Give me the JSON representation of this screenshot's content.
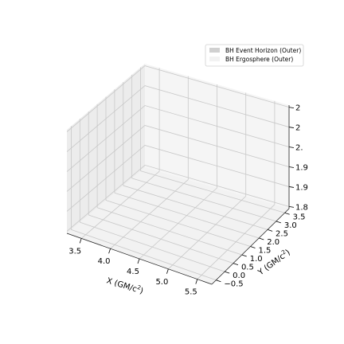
{
  "chart_data": {
    "type": "3d-surface",
    "title": "",
    "projection": "3d",
    "grid": true,
    "xlabel": "X $(GM/c^2)$",
    "ylabel": "Y $(GM/c^2)$",
    "zlabel": "",
    "x_ticks": [
      "3.5",
      "4.0",
      "4.5",
      "5.0",
      "5.5"
    ],
    "y_ticks": [
      "−0.5",
      "0.0",
      "0.5",
      "1.0",
      "1.5",
      "2.0",
      "2.5",
      "3.0",
      "3.5"
    ],
    "z_ticks": [
      "1.8",
      "1.9",
      "1.9",
      "2.",
      "2",
      "2"
    ],
    "xlim": [
      3.25,
      5.75
    ],
    "ylim": [
      -0.75,
      3.75
    ],
    "legend_position": "upper right",
    "series": [
      {
        "name": "BH Event Horizon (Outer)",
        "color": "#d0d0d0",
        "values": []
      },
      {
        "name": "BH Ergosphere (Outer)",
        "color": "#f2f2f2",
        "values": []
      }
    ]
  },
  "x_label_text": {
    "main": "X (GM/c",
    "sup": "2",
    "tail": ")"
  },
  "y_label_text": {
    "main": "Y (GM/c",
    "sup": "2",
    "tail": ")"
  }
}
